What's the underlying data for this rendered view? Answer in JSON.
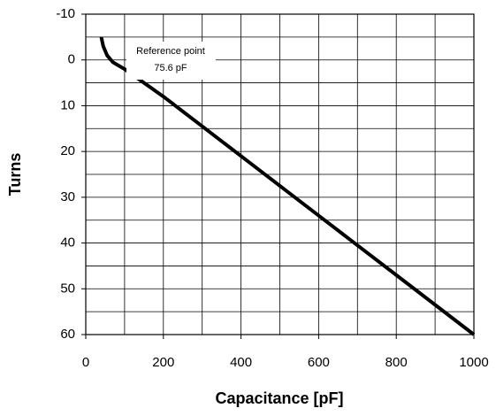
{
  "chart_data": {
    "type": "line",
    "x_label": "Capacitance [pF]",
    "y_label": "Turns",
    "x": [
      40,
      45,
      55,
      70,
      90,
      100,
      200,
      300,
      400,
      500,
      600,
      700,
      800,
      900,
      1000
    ],
    "series": [
      {
        "color": "#000000",
        "values": [
          -5,
          -3,
          -1,
          0.5,
          1.5,
          2,
          8,
          14.5,
          21,
          27.5,
          34,
          40.5,
          47,
          53.5,
          60
        ]
      }
    ],
    "xlim": [
      0,
      1000
    ],
    "xticks": [
      0,
      200,
      400,
      600,
      800,
      1000
    ],
    "x_grid_minor": [
      100,
      300,
      500,
      700,
      900
    ],
    "ylim": [
      -10,
      60
    ],
    "y_inverted": true,
    "yticks": [
      -10,
      0,
      10,
      20,
      30,
      40,
      50,
      60
    ],
    "y_grid_minor": [
      -5,
      5,
      15,
      25,
      35,
      45,
      55
    ],
    "grid": true,
    "annotation": {
      "lines": [
        "Reference point",
        "75.6 pF"
      ]
    }
  }
}
